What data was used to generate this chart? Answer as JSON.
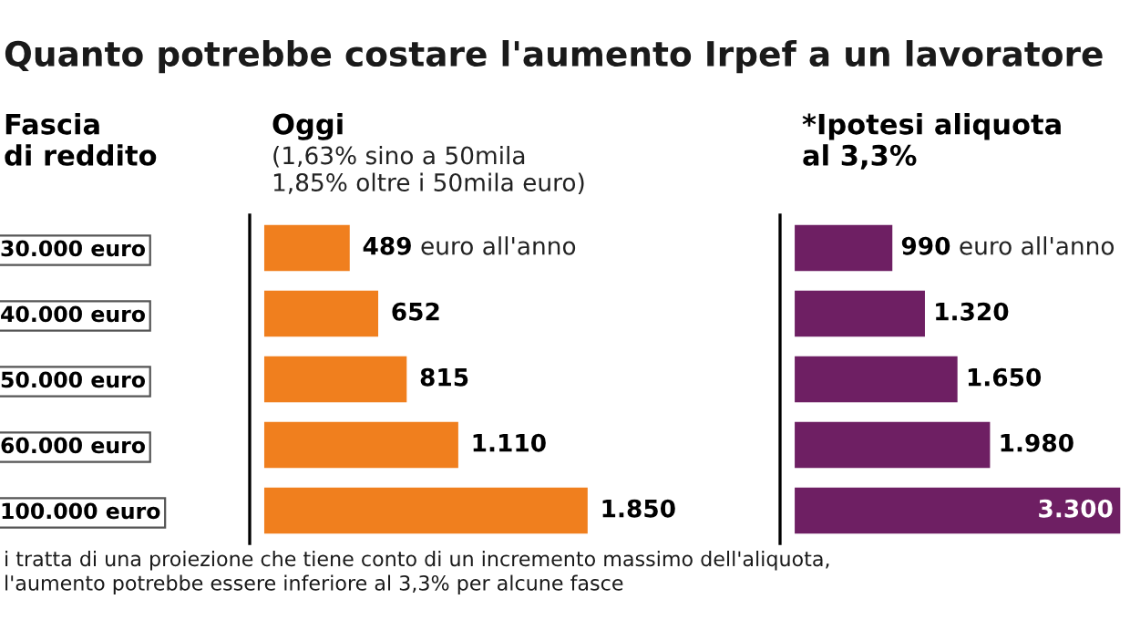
{
  "chart_data": [
    {
      "type": "bar",
      "orientation": "horizontal",
      "title": "Oggi",
      "subtitle": "(1,63% sino a 50mila\n1,85% oltre i 50mila euro)",
      "ylabel": "Fascia\ndi reddito",
      "categories": [
        "30.000 euro",
        "40.000 euro",
        "50.000 euro",
        "60.000 euro",
        "100.000 euro"
      ],
      "values": [
        489,
        652,
        815,
        1110,
        1850
      ],
      "color": "#f07f1e",
      "value_labels": [
        "489 euro all'anno",
        "652",
        "815",
        "1.110",
        "1.850"
      ],
      "annotations": [
        "Quanto potrebbe costare l'aumento Irpef a un lavoratore",
        "i tratta di una proiezione che tiene conto di un incremento massimo dell'aliquota,\nl'aumento potrebbe essere inferiore al 3,3% per alcune fasce"
      ]
    },
    {
      "type": "bar",
      "orientation": "horizontal",
      "title": "*Ipotesi aliquota\nal 3,3%",
      "categories": [
        null,
        null,
        null,
        null,
        null
      ],
      "values": [
        990,
        1320,
        1650,
        1980,
        3300
      ],
      "color": "#6e1f63",
      "value_labels": [
        "990 euro all'anno",
        "1.320",
        "1.650",
        "1.980",
        "3.300"
      ]
    }
  ]
}
